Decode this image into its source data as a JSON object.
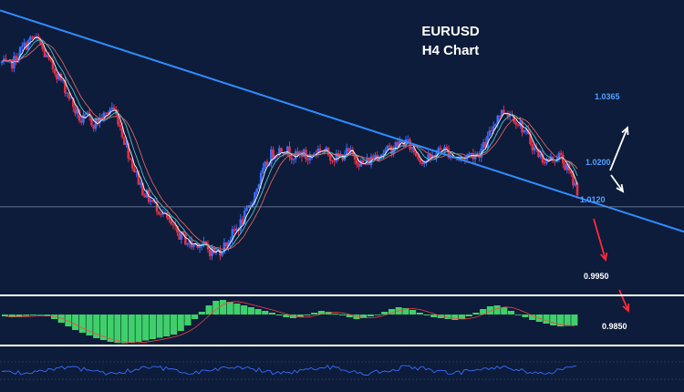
{
  "chart_data": {
    "type": "candlestick",
    "title": "EURUSD",
    "subtitle": "H4 Chart",
    "colors": {
      "background": "#0c1c3a",
      "bull": "#3a6bff",
      "bear": "#e0334a",
      "trendline": "#2f8cff",
      "support": "#7f8aa6",
      "ma_fast": "#ffffff",
      "ma_mid": "#46c6c6",
      "ma_slow": "#e06060",
      "macd_hist": "#3fd06a",
      "macd_signal": "#ff4040",
      "rsi": "#3a6bff",
      "arrow_up": "#ffffff",
      "arrow_down": "#ff2a3a",
      "label_blue": "#4fa0ff",
      "label_white": "#ffffff"
    },
    "price_path": [
      1.031,
      1.03,
      1.0315,
      1.034,
      1.0355,
      1.037,
      1.0362,
      1.033,
      1.0305,
      1.0285,
      1.026,
      1.023,
      1.0195,
      1.017,
      1.018,
      1.0165,
      1.0175,
      1.0185,
      1.0205,
      1.0175,
      1.0125,
      1.008,
      1.004,
      1.0005,
      0.9985,
      0.997,
      0.9955,
      0.9935,
      0.991,
      0.9898,
      0.9885,
      0.9872,
      0.988,
      0.987,
      0.986,
      0.9855,
      0.9865,
      0.9885,
      0.9905,
      0.9925,
      0.995,
      0.9985,
      1.0025,
      1.006,
      1.009,
      1.01,
      1.0105,
      1.0095,
      1.0085,
      1.0095,
      1.008,
      1.0095,
      1.0105,
      1.0095,
      1.0085,
      1.008,
      1.0095,
      1.0092,
      1.008,
      1.0065,
      1.0075,
      1.009,
      1.0095,
      1.01,
      1.0108,
      1.0118,
      1.012,
      1.0105,
      1.0085,
      1.0075,
      1.008,
      1.0095,
      1.0105,
      1.0095,
      1.0085,
      1.008,
      1.0088,
      1.0092,
      1.0095,
      1.0115,
      1.015,
      1.0185,
      1.0195,
      1.019,
      1.0175,
      1.0155,
      1.013,
      1.0105,
      1.0085,
      1.0075,
      1.008,
      1.0088,
      1.0065,
      1.0035,
      1.0005
    ],
    "trendline": [
      {
        "x": 0,
        "y": 1.0435
      },
      {
        "x": 94,
        "y": 0.9988
      }
    ],
    "support_level": 0.9965,
    "price_levels": [
      {
        "label": "1.0365",
        "role": "upside target 2"
      },
      {
        "label": "1.0200",
        "role": "upside target 1"
      },
      {
        "label": "1.0120",
        "role": "pivot"
      },
      {
        "label": "0.9950",
        "role": "downside target 1"
      },
      {
        "label": "0.9850",
        "role": "downside target 2"
      }
    ],
    "indicators": [
      "moving averages",
      "MACD",
      "RSI"
    ],
    "macd_hist": [
      -0.2,
      -0.3,
      -0.25,
      -0.15,
      -0.1,
      -0.05,
      -0.2,
      -0.5,
      -0.9,
      -1.3,
      -1.7,
      -2.0,
      -2.3,
      -2.6,
      -2.8,
      -3.0,
      -3.1,
      -3.15,
      -3.1,
      -3.0,
      -2.85,
      -2.7,
      -2.55,
      -2.4,
      -2.2,
      -1.8,
      -1.2,
      -0.5,
      0.3,
      1.0,
      1.5,
      1.6,
      1.4,
      1.2,
      1.0,
      0.8,
      0.6,
      0.4,
      0.2,
      -0.1,
      -0.3,
      -0.4,
      -0.3,
      -0.1,
      0.2,
      0.4,
      0.3,
      0.1,
      -0.1,
      -0.3,
      -0.5,
      -0.4,
      -0.2,
      0.0,
      0.3,
      0.6,
      0.8,
      0.7,
      0.5,
      0.2,
      -0.1,
      -0.3,
      -0.4,
      -0.5,
      -0.6,
      -0.5,
      -0.2,
      0.2,
      0.6,
      0.9,
      1.0,
      0.8,
      0.4,
      0.0,
      -0.3,
      -0.6,
      -0.8,
      -1.0,
      -1.2,
      -1.3,
      -1.25,
      -1.2
    ]
  }
}
